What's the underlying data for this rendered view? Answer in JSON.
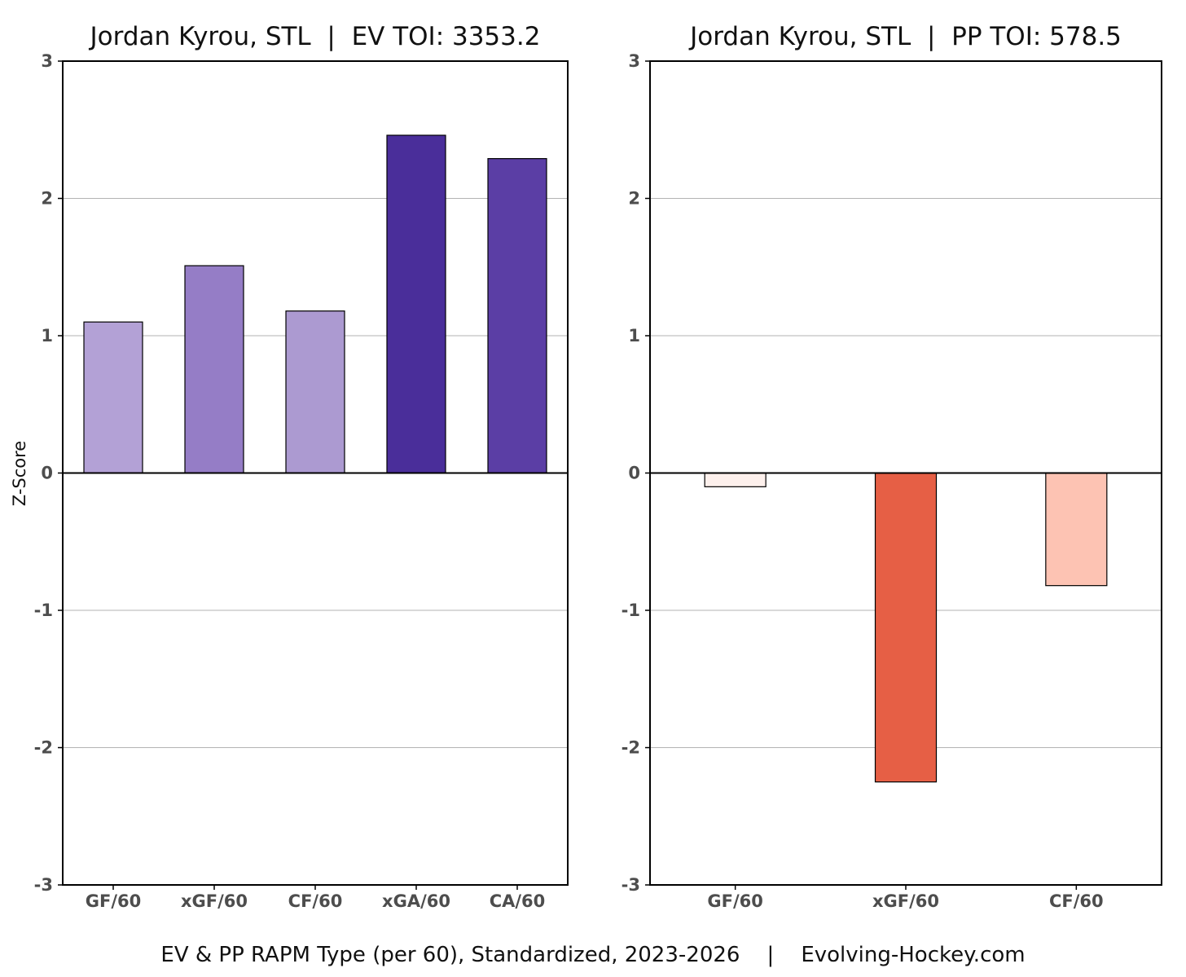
{
  "caption": "EV & PP RAPM Type (per 60), Standardized, 2023-2026    |    Evolving-Hockey.com",
  "chart_data": [
    {
      "type": "bar",
      "title": "Jordan Kyrou, STL  |  EV TOI: 3353.2",
      "xlabel": "",
      "ylabel": "Z-Score",
      "ylim": [
        -3,
        3
      ],
      "yticks": [
        "-3",
        "-2",
        "-1",
        "0",
        "1",
        "2",
        "3"
      ],
      "grid": "horizontal",
      "categories": [
        "GF/60",
        "xGF/60",
        "CF/60",
        "xGA/60",
        "CA/60"
      ],
      "values": [
        1.1,
        1.51,
        1.18,
        2.46,
        2.29
      ],
      "colors": [
        "#b3a1d6",
        "#957dc6",
        "#ac9ad1",
        "#4a2e9a",
        "#5b3ea5"
      ]
    },
    {
      "type": "bar",
      "title": "Jordan Kyrou, STL  |  PP TOI: 578.5",
      "xlabel": "",
      "ylabel": "",
      "ylim": [
        -3,
        3
      ],
      "yticks": [
        "-3",
        "-2",
        "-1",
        "0",
        "1",
        "2",
        "3"
      ],
      "grid": "horizontal",
      "categories": [
        "GF/60",
        "xGF/60",
        "CF/60"
      ],
      "values": [
        -0.1,
        -2.25,
        -0.82
      ],
      "colors": [
        "#fdf0ec",
        "#e65f45",
        "#fdc3b3"
      ]
    }
  ]
}
